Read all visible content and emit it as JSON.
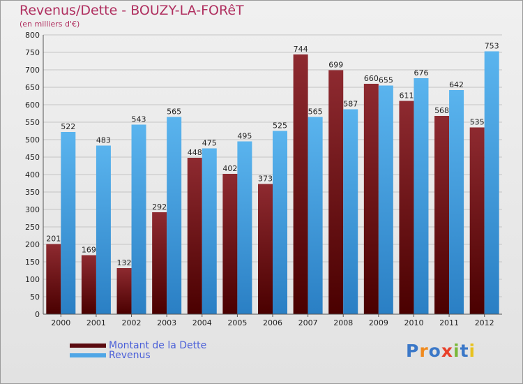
{
  "chart_data": {
    "type": "bar",
    "title": "Revenus/Dette - BOUZY-LA-FORêT",
    "subtitle": "(en milliers d'€)",
    "categories": [
      "2000",
      "2001",
      "2002",
      "2003",
      "2004",
      "2005",
      "2006",
      "2007",
      "2008",
      "2009",
      "2010",
      "2011",
      "2012"
    ],
    "series": [
      {
        "name": "Montant de la Dette",
        "color": "#7a1a1f",
        "values": [
          201,
          169,
          132,
          292,
          448,
          402,
          373,
          744,
          699,
          660,
          611,
          568,
          535
        ]
      },
      {
        "name": "Revenus",
        "color": "#4fa6e6",
        "values": [
          522,
          483,
          543,
          565,
          475,
          495,
          525,
          565,
          587,
          655,
          676,
          642,
          753
        ]
      }
    ],
    "ylim": [
      0,
      800
    ],
    "yticks": [
      0,
      50,
      100,
      150,
      200,
      250,
      300,
      350,
      400,
      450,
      500,
      550,
      600,
      650,
      700,
      750,
      800
    ],
    "grid": true,
    "legend_position": "bottom-left"
  },
  "logo": {
    "text": "Proxiti",
    "colors": [
      "#3b78c8",
      "#f08a1e",
      "#3b78c8",
      "#e8402a",
      "#7ab83a",
      "#3b78c8",
      "#e8c21e"
    ]
  }
}
